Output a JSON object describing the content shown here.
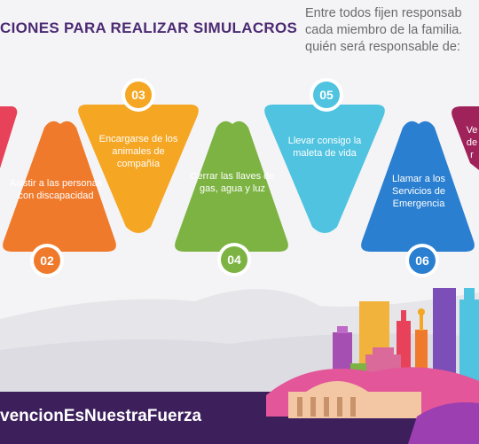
{
  "header": {
    "title": "CIONES PARA REALIZAR SIMULACROS",
    "intro_lines": [
      "Entre todos fijen responsab",
      "cada miembro de la familia.",
      "quién será responsable de:"
    ]
  },
  "steps": [
    {
      "number": "02",
      "text": "Asistir a las personas con discapacidad",
      "color": "#f07a2b"
    },
    {
      "number": "03",
      "text": "Encargarse de los animales de compañía",
      "color": "#f5a623"
    },
    {
      "number": "04",
      "text": "Cerrar las llaves de gas, agua y luz",
      "color": "#7cb342"
    },
    {
      "number": "05",
      "text": "Llevar consigo la maleta de vida",
      "color": "#4fc3e0"
    },
    {
      "number": "06",
      "text": "Llamar a los Servicios de Emergencia",
      "color": "#2a7fd1"
    },
    {
      "number": "",
      "text": "Ve de r",
      "color": "#a0225a"
    }
  ],
  "first_step_color": "#e8425a",
  "footer": {
    "hashtag": "vencionEsNuestraFuerza",
    "bar_color": "#3d1f5c"
  }
}
